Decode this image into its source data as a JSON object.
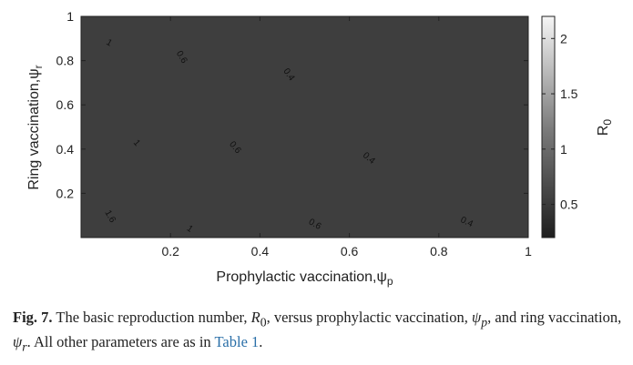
{
  "chart_data": {
    "type": "contourf",
    "xlabel": "Prophylactic vaccination,ψ",
    "xlabel_sub": "p",
    "ylabel": "Ring vaccination,ψ",
    "ylabel_sub": "r",
    "xlim": [
      0,
      1
    ],
    "ylim": [
      0,
      1
    ],
    "x_ticks": [
      "0.2",
      "0.4",
      "0.6",
      "0.8",
      "1"
    ],
    "y_ticks": [
      "0.2",
      "0.4",
      "0.6",
      "0.8",
      "1"
    ],
    "colorbar": {
      "label": "R",
      "label_sub": "0",
      "range": [
        0.2,
        2.2
      ],
      "ticks": [
        "0.5",
        "1",
        "1.5",
        "2"
      ],
      "colormap": "gray"
    },
    "contour_levels": [
      0.4,
      0.6,
      0.8,
      1.0,
      1.2,
      1.4,
      1.6,
      1.8
    ],
    "contour_labels": [
      {
        "text": "1",
        "x": 0.06,
        "y": 0.87,
        "rot": 30
      },
      {
        "text": "0.6",
        "x": 0.22,
        "y": 0.81,
        "rot": 60
      },
      {
        "text": "0.4",
        "x": 0.46,
        "y": 0.73,
        "rot": 55
      },
      {
        "text": "1",
        "x": 0.12,
        "y": 0.42,
        "rot": 50
      },
      {
        "text": "0.6",
        "x": 0.34,
        "y": 0.4,
        "rot": 50
      },
      {
        "text": "0.4",
        "x": 0.64,
        "y": 0.35,
        "rot": 40
      },
      {
        "text": "1.6",
        "x": 0.06,
        "y": 0.09,
        "rot": 60
      },
      {
        "text": "1",
        "x": 0.24,
        "y": 0.03,
        "rot": 35
      },
      {
        "text": "0.6",
        "x": 0.52,
        "y": 0.05,
        "rot": 30
      },
      {
        "text": "0.4",
        "x": 0.86,
        "y": 0.06,
        "rot": 25
      }
    ]
  },
  "caption": {
    "label": "Fig. 7.",
    "t1": " The basic reproduction number, ",
    "r": "R",
    "r_sub": "0",
    "t2": ", versus prophylactic vaccination, ",
    "psi_p": "ψ",
    "psi_p_sub": "p",
    "t3": ", and ring vaccination, ",
    "psi_r": "ψ",
    "psi_r_sub": "r",
    "t4": ". All other parameters are as in ",
    "link": "Table 1",
    "t5": "."
  }
}
